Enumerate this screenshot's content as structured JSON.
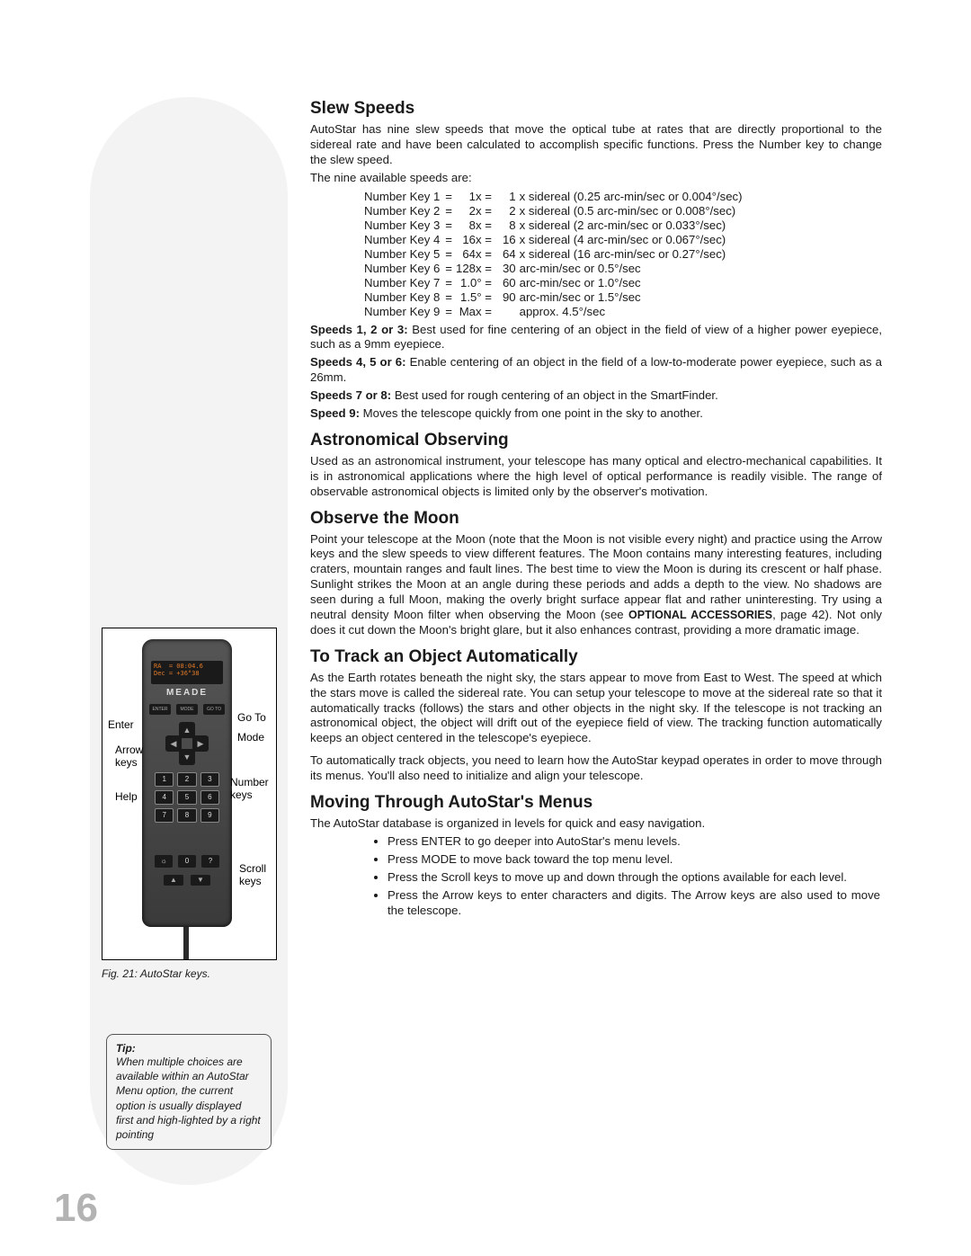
{
  "page_number": "16",
  "sidebar": {
    "fig_caption": "Fig. 21: AutoStar keys.",
    "controller_brand": "MEADE",
    "controller_screen": "RA  = 08:04.6\nDec = +36°38",
    "labels": {
      "enter": "Enter",
      "arrow": "Arrow\nkeys",
      "help": "Help",
      "goto": "Go To",
      "mode": "Mode",
      "number": "Number\nkeys",
      "scroll": "Scroll\nkeys"
    },
    "tip_title": "Tip:",
    "tip_body": "When multiple choices are available within an AutoStar Menu option, the current option is usually displayed first and high-lighted by a right pointing"
  },
  "sections": {
    "slew": {
      "title": "Slew Speeds",
      "intro": "AutoStar has nine slew speeds that move the optical tube at rates that are directly proportional to the sidereal rate and have been calculated to accomplish specific functions. Press the Number key to change the slew speed.",
      "avail_line": "The nine available speeds are:",
      "rows": [
        [
          "Number Key 1",
          "=",
          "1x =",
          "1",
          "x sidereal (0.25 arc-min/sec or 0.004°/sec)"
        ],
        [
          "Number Key 2",
          "=",
          "2x =",
          "2",
          "x sidereal (0.5 arc-min/sec or 0.008°/sec)"
        ],
        [
          "Number Key 3",
          "=",
          "8x =",
          "8",
          "x sidereal (2 arc-min/sec or 0.033°/sec)"
        ],
        [
          "Number Key 4",
          "=",
          "16x =",
          "16",
          "x sidereal (4 arc-min/sec or 0.067°/sec)"
        ],
        [
          "Number Key 5",
          "=",
          "64x =",
          "64",
          "x sidereal (16 arc-min/sec or 0.27°/sec)"
        ],
        [
          "Number Key 6",
          "=",
          "128x =",
          "30",
          "arc-min/sec or 0.5°/sec"
        ],
        [
          "Number Key 7",
          "=",
          "1.0° =",
          "60",
          "arc-min/sec or 1.0°/sec"
        ],
        [
          "Number Key 8",
          "=",
          "1.5° =",
          "90",
          "arc-min/sec or 1.5°/sec"
        ],
        [
          "Number Key 9",
          "=",
          "Max =",
          "",
          "approx. 4.5°/sec"
        ]
      ],
      "note123_b": "Speeds 1, 2 or 3:",
      "note123": " Best used for fine centering of an object in the field of view of a higher power eyepiece, such as a 9mm eyepiece.",
      "note456_b": "Speeds 4, 5 or 6:",
      "note456": " Enable centering of an object in the field of a low-to-moderate power eyepiece, such as a 26mm.",
      "note78_b": "Speeds 7 or 8:",
      "note78": " Best used for rough centering of an object in the SmartFinder.",
      "note9_b": "Speed 9:",
      "note9": " Moves the telescope quickly from one point in the sky to another."
    },
    "astro": {
      "title": "Astronomical Observing",
      "body": "Used as an astronomical instrument, your telescope has many optical and electro-mechanical capabilities. It is in astronomical applications where the high level of optical performance is readily visible. The range of observable astronomical objects is limited only by the observer's motivation."
    },
    "moon": {
      "title": "Observe the Moon",
      "body1": "Point your telescope at the Moon (note that the Moon is not visible every night) and practice using the Arrow keys and the slew speeds to view different features. The Moon contains many interesting features, including craters, mountain ranges and fault lines. The best time to view the Moon is during its crescent or half phase. Sunlight strikes the Moon at an angle during these periods and adds a depth to the view. No shadows are seen during a full Moon, making the overly bright surface appear flat and rather uninteresting. Try using a neutral density Moon filter when observing the Moon (see ",
      "accessories": "OPTIONAL ACCESSORIES",
      "body2": ", page 42). Not only does it cut down the Moon's bright glare, but it also enhances contrast, providing a more dramatic image."
    },
    "track": {
      "title": "To Track an Object Automatically",
      "body1": "As the Earth rotates beneath the night sky, the stars appear to move from East to West. The speed at which the stars move is called the sidereal rate. You can setup your telescope to move at the sidereal rate so that it automatically tracks (follows) the stars and other objects in the night sky. If the telescope is not tracking an astronomical object, the object will drift out of the eyepiece field of view. The tracking function automatically keeps an object centered in the telescope's eyepiece.",
      "body2": "To automatically track objects, you need to learn how the AutoStar keypad operates in order to move through its menus. You'll also need to initialize and align your telescope."
    },
    "menus": {
      "title": "Moving Through AutoStar's Menus",
      "intro": "The AutoStar database is organized in levels for quick and easy navigation.",
      "bullets": [
        "Press ENTER to go deeper into AutoStar's menu levels.",
        "Press MODE to move back toward the top menu level.",
        "Press the Scroll keys to move up and down through the options available for each level.",
        "Press the Arrow keys to enter characters and digits. The Arrow keys are also used to move the telescope."
      ]
    }
  }
}
